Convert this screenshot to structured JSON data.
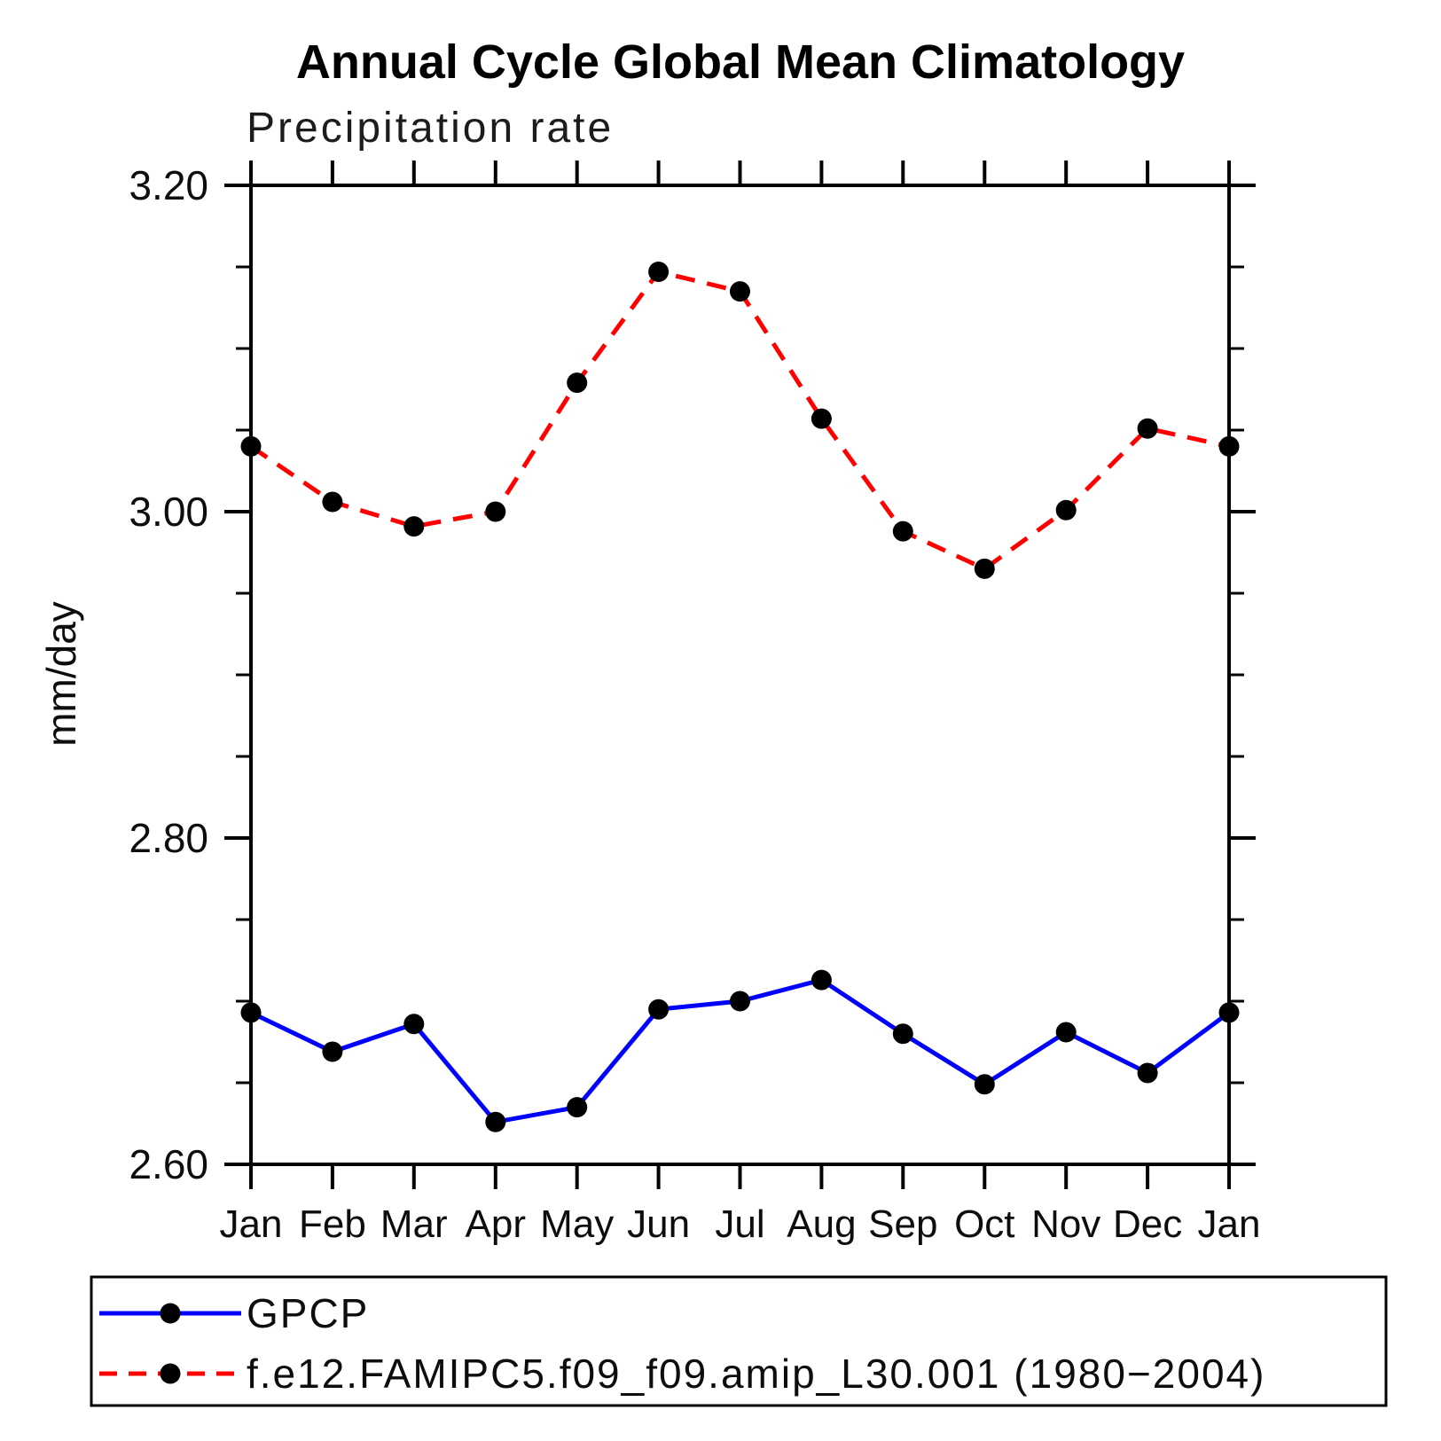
{
  "page": {
    "background": "#ffffff"
  },
  "chart_data": {
    "type": "line",
    "title": "Annual Cycle Global Mean Climatology",
    "subtitle": "Precipitation rate",
    "ylabel": "mm/day",
    "categories": [
      "Jan",
      "Feb",
      "Mar",
      "Apr",
      "May",
      "Jun",
      "Jul",
      "Aug",
      "Sep",
      "Oct",
      "Nov",
      "Dec",
      "Jan"
    ],
    "ylim": [
      2.6,
      3.2
    ],
    "y_axis": {
      "major": [
        {
          "value": 2.6,
          "label": "2.60"
        },
        {
          "value": 2.8,
          "label": "2.80"
        },
        {
          "value": 3.0,
          "label": "3.00"
        },
        {
          "value": 3.2,
          "label": "3.20"
        }
      ],
      "minor_step": 0.05
    },
    "grid": false,
    "legend_position": "bottom-left-box",
    "series": [
      {
        "name": "GPCP",
        "color": "#0000ff",
        "line_style": "solid",
        "marker": "filled-black-circle",
        "values": [
          2.693,
          2.669,
          2.686,
          2.626,
          2.635,
          2.695,
          2.7,
          2.713,
          2.68,
          2.649,
          2.681,
          2.656,
          2.693
        ]
      },
      {
        "name": "f.e12.FAMIPC5.f09_f09.amip_L30.001 (1980−2004)",
        "color": "#ff0000",
        "line_style": "dashed",
        "marker": "filled-black-circle",
        "values": [
          3.04,
          3.006,
          2.991,
          3.0,
          3.079,
          3.147,
          3.135,
          3.057,
          2.988,
          2.965,
          3.001,
          3.051,
          3.04
        ]
      }
    ]
  }
}
